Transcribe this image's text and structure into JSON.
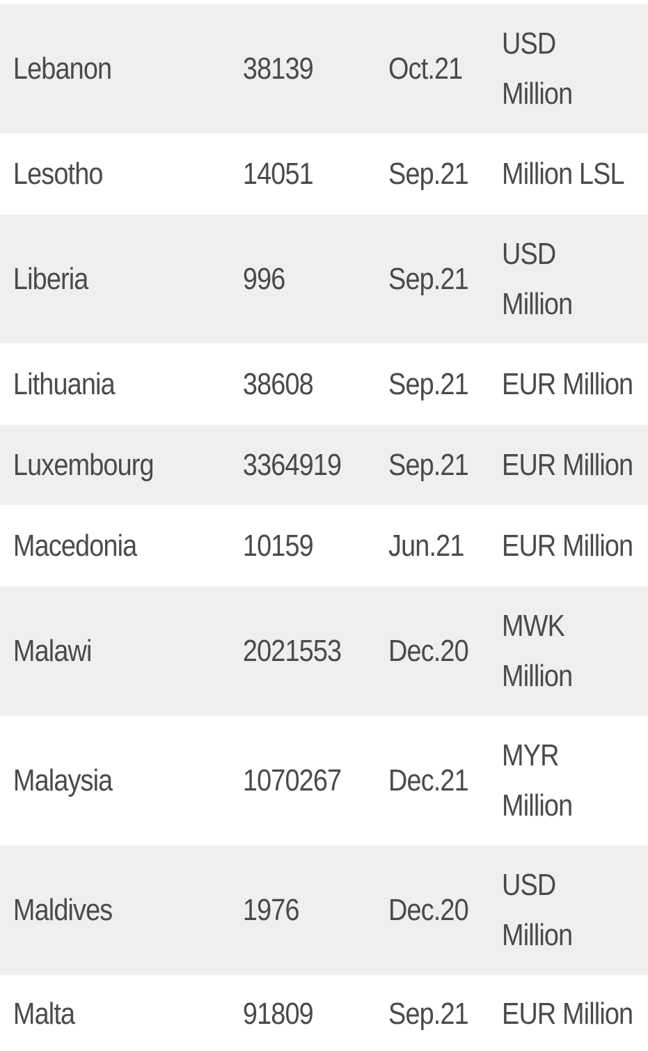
{
  "rows": [
    {
      "country": "Lebanon",
      "value": "38139",
      "date": "Oct.21",
      "unit": "USD Million"
    },
    {
      "country": "Lesotho",
      "value": "14051",
      "date": "Sep.21",
      "unit": "Million LSL"
    },
    {
      "country": "Liberia",
      "value": "996",
      "date": "Sep.21",
      "unit": "USD Million"
    },
    {
      "country": "Lithuania",
      "value": "38608",
      "date": "Sep.21",
      "unit": "EUR Million"
    },
    {
      "country": "Luxembourg",
      "value": "3364919",
      "date": "Sep.21",
      "unit": "EUR Million"
    },
    {
      "country": "Macedonia",
      "value": "10159",
      "date": "Jun.21",
      "unit": "EUR Million"
    },
    {
      "country": "Malawi",
      "value": "2021553",
      "date": "Dec.20",
      "unit": "MWK Million"
    },
    {
      "country": "Malaysia",
      "value": "1070267",
      "date": "Dec.21",
      "unit": "MYR Million"
    },
    {
      "country": "Maldives",
      "value": "1976",
      "date": "Dec.20",
      "unit": "USD Million"
    },
    {
      "country": "Malta",
      "value": "91809",
      "date": "Sep.21",
      "unit": "EUR Million"
    }
  ]
}
